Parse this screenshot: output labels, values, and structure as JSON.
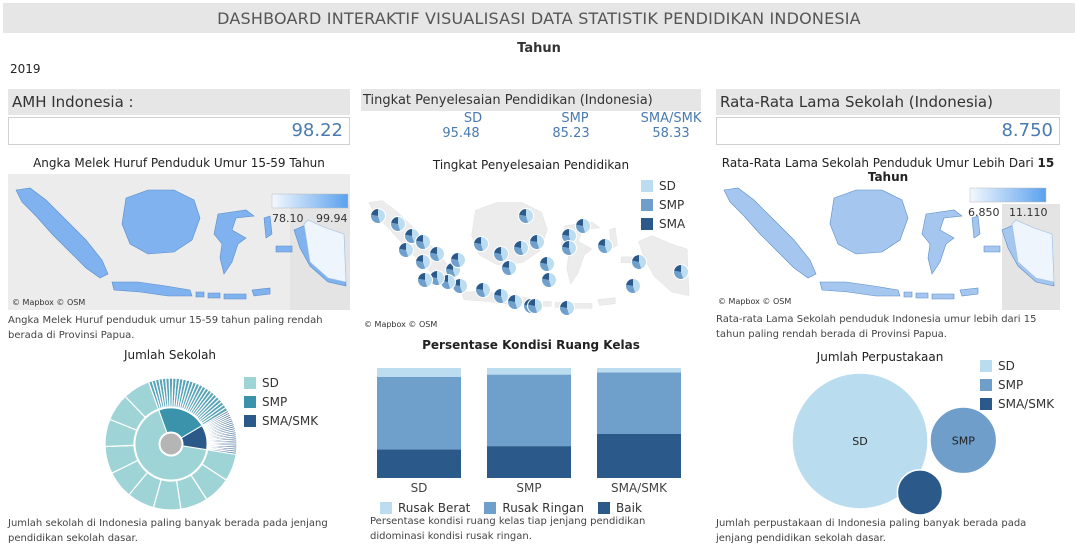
{
  "dashboard": {
    "title": "DASHBOARD INTERAKTIF VISUALISASI DATA STATISTIK PENDIDIKAN INDONESIA",
    "filter_label": "Tahun",
    "filter_value": "2019"
  },
  "kpi": {
    "amh": {
      "label": "AMH Indonesia :",
      "value": "98.22"
    },
    "tingkat": {
      "label": "Tingkat Penyelesaian Pendidikan (Indonesia)",
      "columns": [
        {
          "name": "SD",
          "value": "95.48"
        },
        {
          "name": "SMP",
          "value": "85.23"
        },
        {
          "name": "SMA/SMK",
          "value": "58.33"
        }
      ]
    },
    "rls": {
      "label": "Rata-Rata Lama Sekolah (Indonesia)",
      "value": "8.750"
    }
  },
  "maps": {
    "amh": {
      "title": "Angka Melek Huruf Penduduk Umur 15-59 Tahun",
      "legend_min": "78.10",
      "legend_max": "99.94",
      "attribution": "© Mapbox © OSM",
      "note": "Angka Melek Huruf penduduk umur 15-59 tahun paling rendah berada di Provinsi Papua."
    },
    "tingkat": {
      "title": "Tingkat Penyelesaian Pendidikan",
      "legend": [
        "SD",
        "SMP",
        "SMA"
      ],
      "attribution": "© Mapbox © OSM"
    },
    "rls": {
      "title": "Rata-Rata Lama Sekolah Penduduk Umur Lebih Dari",
      "title_bold": "15 Tahun",
      "legend_min": "6.850",
      "legend_max": "11.110",
      "attribution": "© Mapbox © OSM",
      "note": "Rata-rata Lama Sekolah penduduk Indonesia umur lebih dari 15 tahun paling rendah berada di Provinsi Papua."
    }
  },
  "colors": {
    "sd": "#9fd4d6",
    "smp": "#3a93aa",
    "sma": "#2b5a8a",
    "rusak_berat": "#bcdcef",
    "rusak_ringan": "#6fa0cc",
    "baik": "#2b5a8a",
    "lib_sd": "#b9dcef",
    "lib_smp": "#6f9ecb",
    "lib_sma": "#2b5a8a",
    "map_low": "#f4f8fd",
    "map_high": "#5aa1ee",
    "map_fill": "#8db7ea"
  },
  "chart_data": [
    {
      "type": "pie",
      "title": "Jumlah Sekolah",
      "legend": [
        "SD",
        "SMP",
        "SMA/SMK"
      ],
      "inner_ring": [
        {
          "name": "SD",
          "value": 67
        },
        {
          "name": "SMP",
          "value": 22
        },
        {
          "name": "SMA/SMK",
          "value": 11
        }
      ],
      "note": "Jumlah sekolah di Indonesia paling banyak berada pada jenjang pendidikan sekolah dasar."
    },
    {
      "type": "bar",
      "stacked": true,
      "title": "Persentase Kondisi Ruang Kelas",
      "categories": [
        "SD",
        "SMP",
        "SMA/SMK"
      ],
      "series": [
        {
          "name": "Baik",
          "values": [
            26,
            29,
            40
          ]
        },
        {
          "name": "Rusak Ringan",
          "values": [
            66,
            65,
            56
          ]
        },
        {
          "name": "Rusak Berat",
          "values": [
            8,
            6,
            4
          ]
        }
      ],
      "ylim": [
        0,
        100
      ],
      "note": "Persentase kondisi ruang kelas tiap jenjang pendidikan didominasi kondisi rusak ringan."
    },
    {
      "type": "bubble",
      "title": "Jumlah Perpustakaan",
      "legend": [
        "SD",
        "SMP",
        "SMA/SMK"
      ],
      "values": [
        {
          "name": "SD",
          "value": 100
        },
        {
          "name": "SMP",
          "value": 24
        },
        {
          "name": "SMA/SMK",
          "value": 11
        }
      ],
      "note": "Jumlah perpustakaan di Indonesia paling banyak berada pada jenjang pendidikan sekolah dasar."
    }
  ]
}
